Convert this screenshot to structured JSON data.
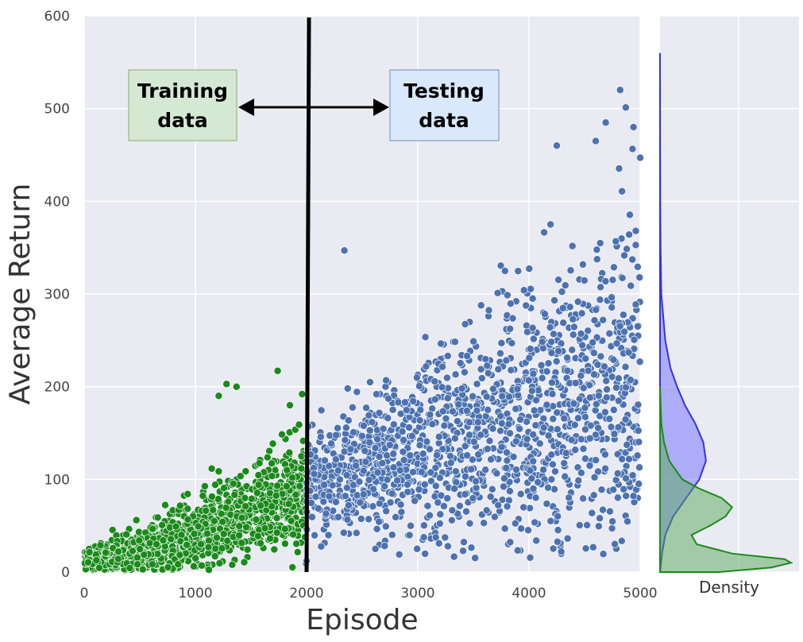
{
  "chart_data": {
    "type": "scatter",
    "xlabel": "Episode",
    "ylabel": "Average Return",
    "xlim": [
      0,
      5000
    ],
    "ylim": [
      0,
      600
    ],
    "xticks": [
      "0",
      "1000",
      "2000",
      "3000",
      "4000",
      "5000"
    ],
    "yticks": [
      "0",
      "100",
      "200",
      "300",
      "400",
      "500",
      "600"
    ],
    "grid": true,
    "split_episode": 2000,
    "annotations": {
      "training": [
        "Training",
        "data"
      ],
      "testing": [
        "Testing",
        "data"
      ]
    },
    "series": [
      {
        "role": "training",
        "color": "#1a8a1a",
        "x_range": [
          0,
          2000
        ],
        "trend": {
          "x": [
            0,
            500,
            1000,
            1500,
            2000
          ],
          "y": [
            12,
            22,
            42,
            68,
            85
          ]
        },
        "outliers": [
          [
            1210,
            190
          ],
          [
            1280,
            203
          ],
          [
            1370,
            200
          ],
          [
            1740,
            217
          ],
          [
            1960,
            192
          ],
          [
            1850,
            180
          ]
        ]
      },
      {
        "role": "testing",
        "color": "#4c72b0",
        "x_range": [
          2000,
          5000
        ],
        "trend": {
          "x": [
            2000,
            3000,
            4000,
            5000
          ],
          "y": [
            95,
            130,
            175,
            215
          ]
        },
        "outliers": [
          [
            2340,
            347
          ],
          [
            4820,
            520
          ],
          [
            4940,
            480
          ],
          [
            4690,
            485
          ],
          [
            4600,
            465
          ],
          [
            4250,
            460
          ],
          [
            5000,
            447
          ],
          [
            2000,
            12
          ]
        ]
      }
    ],
    "density": {
      "xlabel": "Density",
      "training": {
        "color": "#1a8a1a",
        "y": [
          0,
          5,
          10,
          14,
          20,
          30,
          40,
          50,
          60,
          70,
          80,
          90,
          100,
          120,
          140,
          160,
          200
        ],
        "d": [
          0.45,
          0.85,
          1.0,
          0.95,
          0.55,
          0.28,
          0.24,
          0.38,
          0.5,
          0.55,
          0.47,
          0.3,
          0.17,
          0.07,
          0.03,
          0.01,
          0.0
        ]
      },
      "testing": {
        "color": "#3333dd",
        "y": [
          0,
          20,
          40,
          60,
          80,
          100,
          120,
          140,
          160,
          180,
          200,
          220,
          250,
          300,
          350,
          400,
          450,
          560
        ],
        "d": [
          0.0,
          0.015,
          0.04,
          0.1,
          0.2,
          0.3,
          0.35,
          0.33,
          0.27,
          0.19,
          0.13,
          0.08,
          0.04,
          0.01,
          0.004,
          0.002,
          0.001,
          0.0
        ]
      }
    }
  }
}
